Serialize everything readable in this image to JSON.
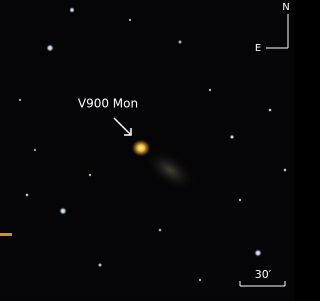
{
  "labels": {
    "target": "V900 Mon",
    "north": "N",
    "east": "E",
    "scale": "30′"
  }
}
